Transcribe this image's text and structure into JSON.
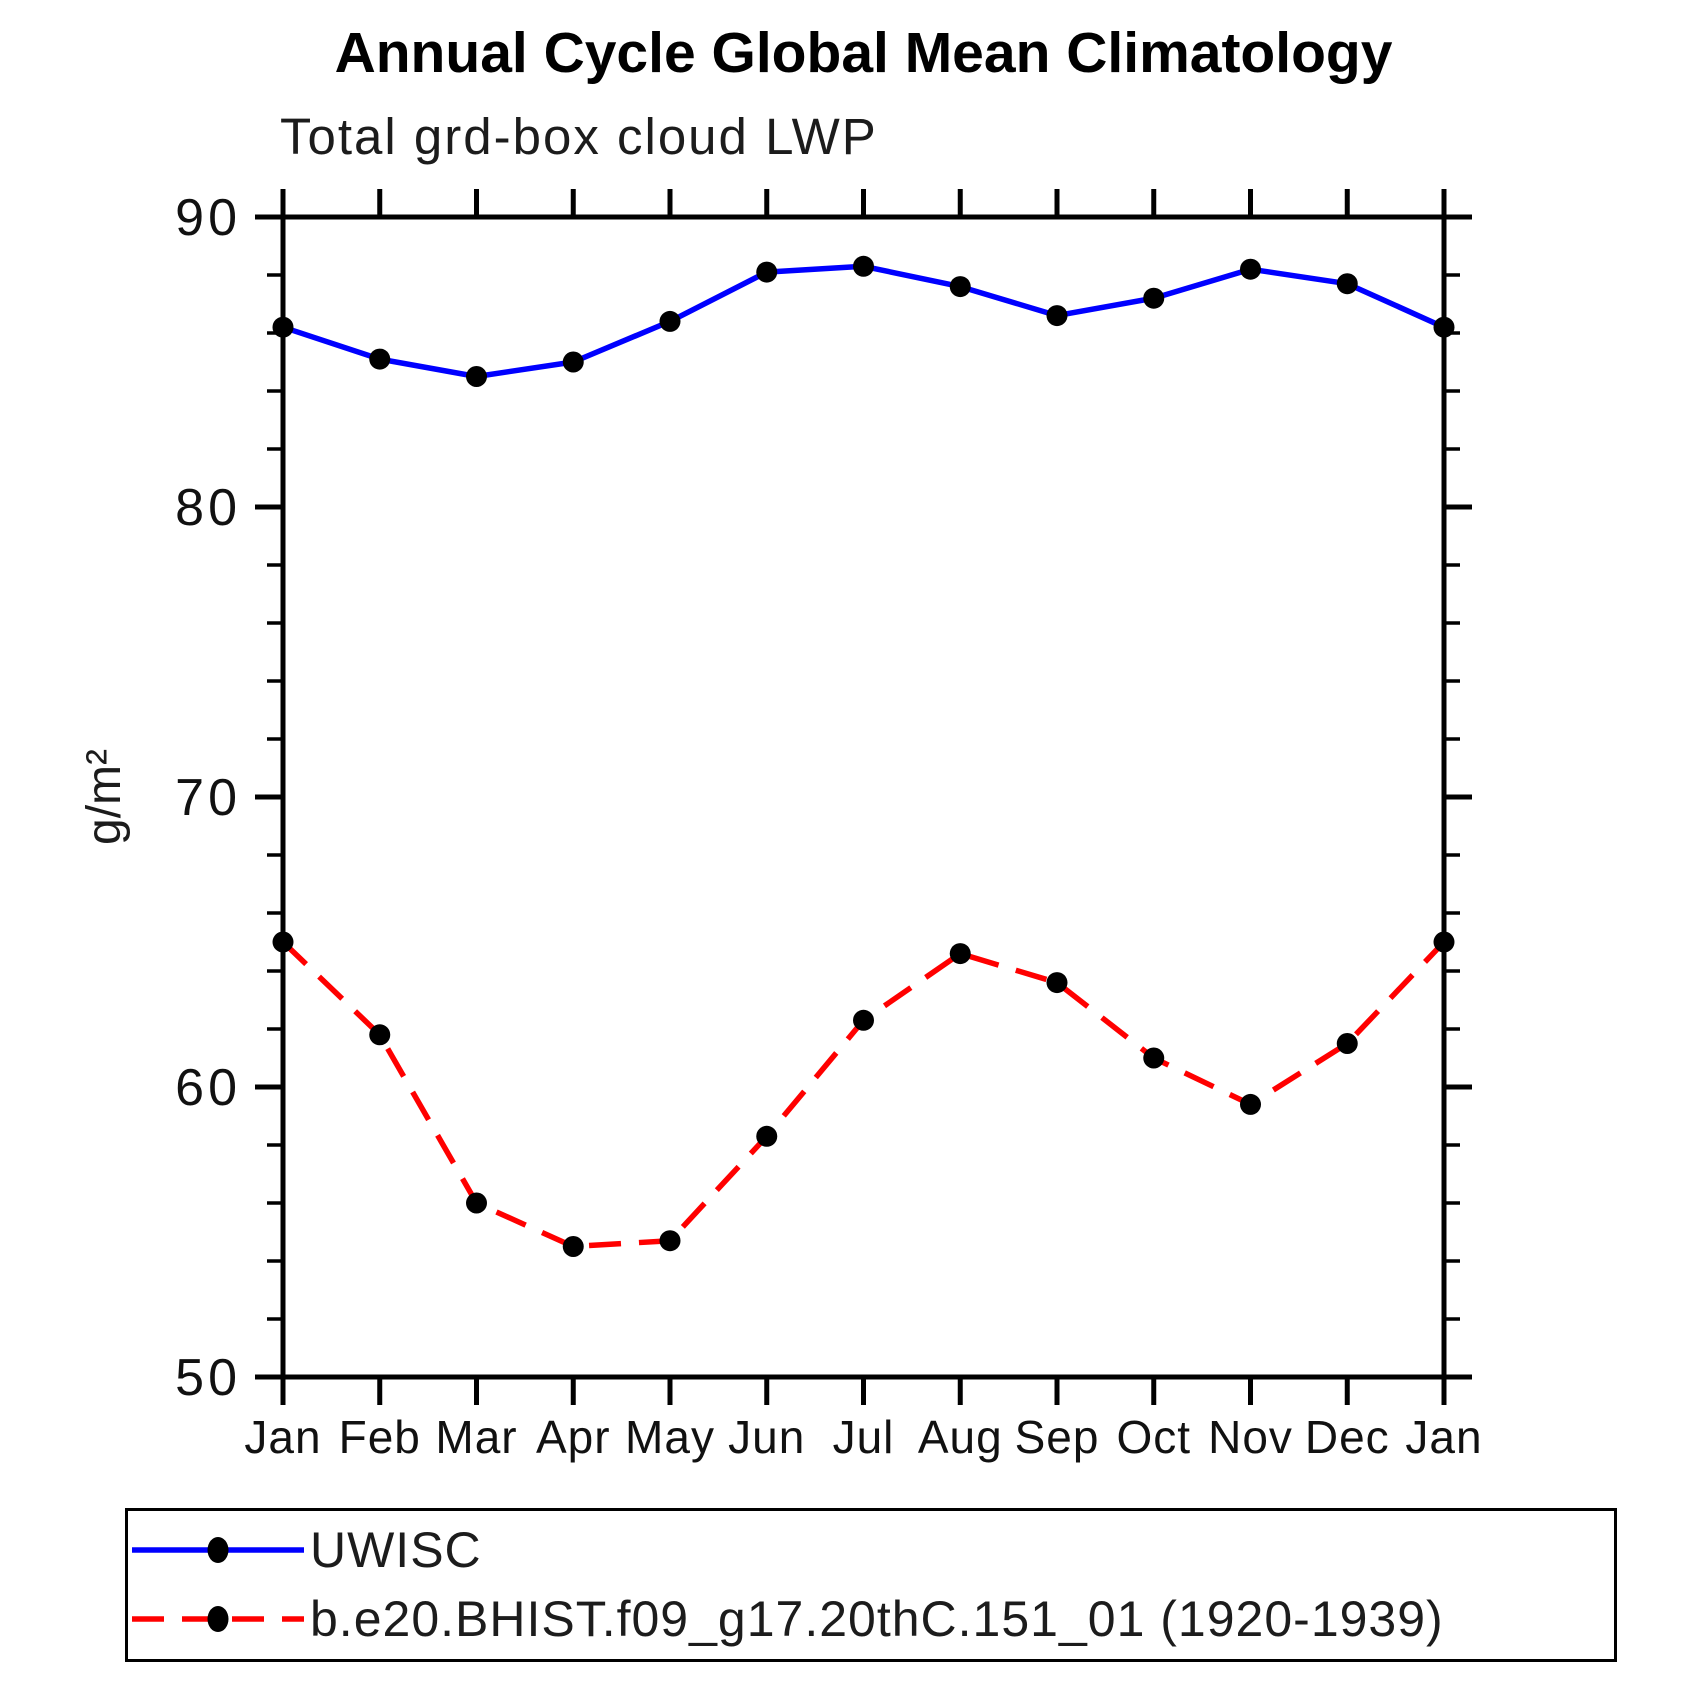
{
  "title": "Annual Cycle Global Mean Climatology",
  "subtitle": "Total grd-box cloud LWP",
  "chart_data": {
    "type": "line",
    "x_categories": [
      "Jan",
      "Feb",
      "Mar",
      "Apr",
      "May",
      "Jun",
      "Jul",
      "Aug",
      "Sep",
      "Oct",
      "Nov",
      "Dec",
      "Jan"
    ],
    "xlabel": "",
    "ylabel": "g/m²",
    "ylim": [
      50,
      90
    ],
    "yticks": [
      50,
      60,
      70,
      80,
      90
    ],
    "minor_tick_step": 2,
    "grid": false,
    "legend_position": "bottom-left-box",
    "axis_color": "#000000",
    "marker_color": "#000000",
    "series": [
      {
        "name": "UWISC",
        "color": "#0000ff",
        "style": "solid",
        "marker": "filled-circle",
        "values": [
          86.2,
          85.1,
          84.5,
          85.0,
          86.4,
          88.1,
          88.3,
          87.6,
          86.6,
          87.2,
          88.2,
          87.7,
          86.2
        ]
      },
      {
        "name": "b.e20.BHIST.f09_g17.20thC.151_01 (1920-1939)",
        "color": "#ff0000",
        "style": "dashed",
        "marker": "filled-circle",
        "values": [
          65.0,
          61.8,
          56.0,
          54.5,
          54.7,
          58.3,
          62.3,
          64.6,
          63.6,
          61.0,
          59.4,
          61.5,
          65.0
        ]
      }
    ]
  }
}
